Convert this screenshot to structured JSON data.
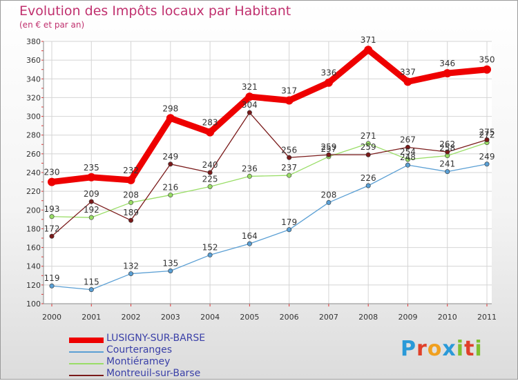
{
  "header": {
    "title": "Evolution des Impôts locaux par Habitant",
    "subtitle": "(en € et par an)"
  },
  "logo": {
    "letters": [
      "P",
      "r",
      "o",
      "x",
      "i",
      "t",
      "i"
    ],
    "colors": [
      "#2a9ad8",
      "#e0402a",
      "#f0a020",
      "#2a9ad8",
      "#80c030",
      "#e0402a",
      "#80c030"
    ]
  },
  "chart_data": {
    "type": "line",
    "title": "Evolution des Impôts locaux par Habitant",
    "subtitle": "(en € et par an)",
    "xlabel": "",
    "ylabel": "",
    "categories": [
      "2000",
      "2001",
      "2002",
      "2003",
      "2004",
      "2005",
      "2006",
      "2007",
      "2008",
      "2009",
      "2010",
      "2011"
    ],
    "ylim": [
      100,
      380
    ],
    "yticks": [
      100,
      120,
      140,
      160,
      180,
      200,
      220,
      240,
      260,
      280,
      300,
      320,
      340,
      360,
      380
    ],
    "grid": true,
    "legend_position": "bottom-left",
    "series": [
      {
        "name": "LUSIGNY-SUR-BARSE",
        "color": "#ee0000",
        "emphasis": true,
        "values": [
          230,
          235,
          232,
          298,
          283,
          321,
          317,
          336,
          371,
          337,
          346,
          350
        ],
        "labels": [
          "230",
          "235",
          "232",
          "298",
          "283",
          "321",
          "317",
          "336",
          "371",
          "337",
          "346",
          "350"
        ]
      },
      {
        "name": "Courteranges",
        "color": "#5a9fd4",
        "emphasis": false,
        "values": [
          119,
          115,
          132,
          135,
          152,
          164,
          179,
          208,
          226,
          248,
          241,
          249
        ],
        "labels": [
          "119",
          "115",
          "132",
          "135",
          "152",
          "164",
          "179",
          "208",
          "226",
          "248",
          "241",
          "249"
        ]
      },
      {
        "name": "Montiéramey",
        "color": "#99dd66",
        "emphasis": false,
        "values": [
          193,
          192,
          208,
          216,
          225,
          236,
          237,
          257,
          271,
          254,
          258,
          272
        ],
        "labels": [
          "193",
          "192",
          "208",
          "216",
          "225",
          "236",
          "237",
          "257",
          "271",
          "254",
          "258",
          "272"
        ]
      },
      {
        "name": "Montreuil-sur-Barse",
        "color": "#7a1a1a",
        "emphasis": false,
        "values": [
          172,
          209,
          189,
          249,
          240,
          304,
          256,
          259,
          259,
          267,
          262,
          275
        ],
        "labels": [
          "172",
          "209",
          "189",
          "249",
          "240",
          "304",
          "256",
          "259",
          "259",
          "267",
          "262",
          "275"
        ]
      }
    ]
  }
}
